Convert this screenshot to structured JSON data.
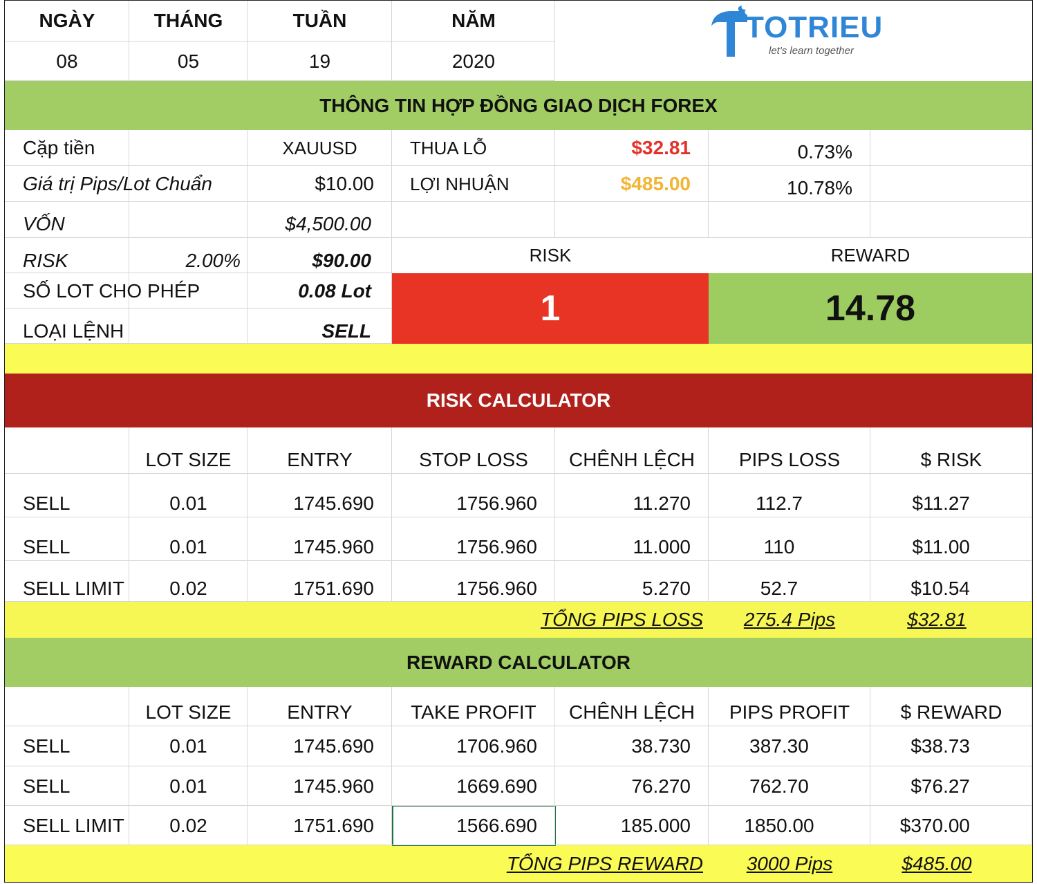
{
  "date_header": {
    "labels": [
      "NGÀY",
      "THÁNG",
      "TUẦN",
      "NĂM"
    ],
    "values": [
      "08",
      "05",
      "19",
      "2020"
    ]
  },
  "logo": {
    "name": "TOTRIEU",
    "tagline": "let's learn together"
  },
  "contract": {
    "title": "THÔNG TIN HỢP ĐỒNG GIAO DỊCH FOREX",
    "pair_label": "Cặp tiền",
    "pair": "XAUUSD",
    "pip_value_label": "Giá trị Pips/Lot Chuẩn",
    "pip_value": "$10.00",
    "loss_label": "THUA LỖ",
    "loss": "$32.81",
    "loss_pct": "0.73%",
    "profit_label": "LỢI NHUẬN",
    "profit": "$485.00",
    "profit_pct": "10.78%",
    "capital_label": "VỐN",
    "capital": "$4,500.00",
    "risk_label": "RISK",
    "risk_pct": "2.00%",
    "risk_amount": "$90.00",
    "lot_label": "SỐ LOT CHO PHÉP",
    "lot": "0.08 Lot",
    "order_type_label": "LOẠI LỆNH",
    "order_type": "SELL",
    "ratio_risk_label": "RISK",
    "ratio_reward_label": "REWARD",
    "ratio_risk": "1",
    "ratio_reward": "14.78"
  },
  "risk_calculator": {
    "title": "RISK CALCULATOR",
    "header": [
      "LOT SIZE",
      "ENTRY",
      "STOP LOSS",
      "CHÊNH LỆCH",
      "PIPS LOSS",
      "$ RISK"
    ],
    "rows": [
      [
        "SELL",
        "0.01",
        "1745.690",
        "1756.960",
        "11.270",
        "112.7",
        "$11.27"
      ],
      [
        "SELL",
        "0.01",
        "1745.960",
        "1756.960",
        "11.000",
        "110",
        "$11.00"
      ],
      [
        "SELL LIMIT",
        "0.02",
        "1751.690",
        "1756.960",
        "5.270",
        "52.7",
        "$10.54"
      ]
    ],
    "total_label": "TỔNG PIPS LOSS",
    "total_pips": "275.4 Pips",
    "total_amount": "$32.81"
  },
  "reward_calculator": {
    "title": "REWARD CALCULATOR",
    "header": [
      "LOT SIZE",
      "ENTRY",
      "TAKE PROFIT",
      "CHÊNH LỆCH",
      "PIPS PROFIT",
      "$ REWARD"
    ],
    "rows": [
      [
        "SELL",
        "0.01",
        "1745.690",
        "1706.960",
        "38.730",
        "387.30",
        "$38.73"
      ],
      [
        "SELL",
        "0.01",
        "1745.960",
        "1669.690",
        "76.270",
        "762.70",
        "$76.27"
      ],
      [
        "SELL LIMIT",
        "0.02",
        "1751.690",
        "1566.690",
        "185.000",
        "1850.00",
        "$370.00"
      ]
    ],
    "total_label": "TỔNG PIPS REWARD",
    "total_pips": "3000 Pips",
    "total_amount": "$485.00"
  }
}
